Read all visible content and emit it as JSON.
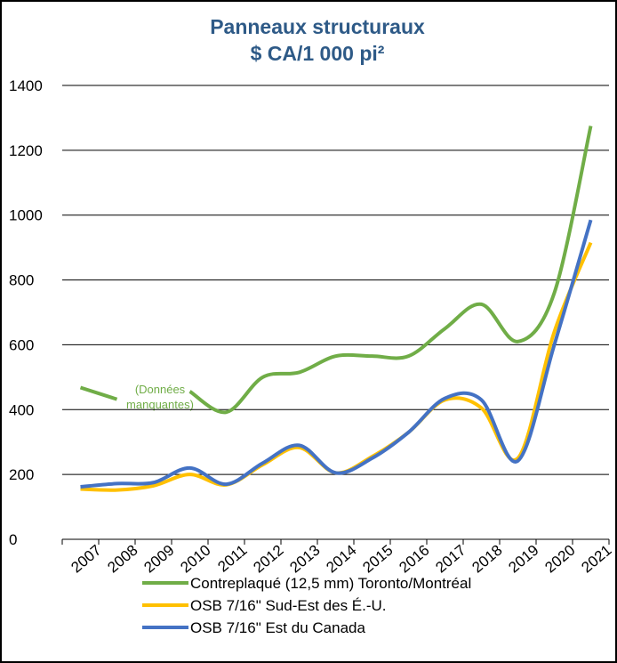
{
  "chart_data": {
    "type": "line",
    "title": "Panneaux structuraux",
    "subtitle": "$ CA/1 000 pi²",
    "annotation": [
      "(Données",
      "manquantes)"
    ],
    "categories": [
      "2007",
      "2008",
      "2009",
      "2010",
      "2011",
      "2012",
      "2013",
      "2014",
      "2015",
      "2016",
      "2017",
      "2018",
      "2019",
      "2020",
      "2021"
    ],
    "series": [
      {
        "name": "Contreplaqué (12,5 mm) Toronto/Montréal",
        "color": "#70ad47",
        "values": [
          468,
          432,
          null,
          456,
          392,
          500,
          515,
          565,
          565,
          565,
          650,
          725,
          610,
          760,
          1275
        ]
      },
      {
        "name": "OSB 7/16\" Sud-Est des É.-U.",
        "color": "#ffc000",
        "values": [
          155,
          152,
          165,
          200,
          168,
          230,
          283,
          205,
          255,
          330,
          430,
          405,
          250,
          640,
          915
        ]
      },
      {
        "name": "OSB 7/16\" Est du Canada",
        "color": "#4472c4",
        "values": [
          162,
          172,
          175,
          220,
          170,
          235,
          290,
          205,
          250,
          330,
          435,
          430,
          242,
          600,
          985
        ]
      }
    ],
    "ylim": [
      0,
      1400
    ],
    "yticks": [
      0,
      200,
      400,
      600,
      800,
      1000,
      1200,
      1400
    ],
    "grid": true
  }
}
